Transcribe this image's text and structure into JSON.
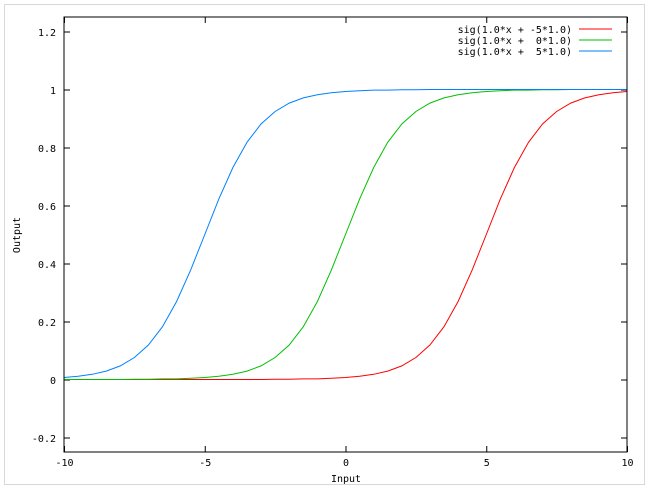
{
  "chart_data": {
    "type": "line",
    "title": "",
    "xlabel": "Input",
    "ylabel": "Output",
    "xlim": [
      -10,
      10
    ],
    "ylim": [
      -0.25,
      1.25
    ],
    "xticks": [
      -10,
      -5,
      0,
      5,
      10
    ],
    "xtick_labels": [
      "-10",
      "-5",
      "0",
      "5",
      "10"
    ],
    "yticks": [
      -0.2,
      0,
      0.2,
      0.4,
      0.6,
      0.8,
      1,
      1.2
    ],
    "ytick_labels": [
      "-0.2",
      "0",
      "0.2",
      "0.4",
      "0.6",
      "0.8",
      "1",
      "1.2"
    ],
    "grid": false,
    "legend_position": "top-right",
    "x": [
      -10,
      -9.5,
      -9,
      -8.5,
      -8,
      -7.5,
      -7,
      -6.5,
      -6,
      -5.5,
      -5,
      -4.5,
      -4,
      -3.5,
      -3,
      -2.5,
      -2,
      -1.5,
      -1,
      -0.5,
      0,
      0.5,
      1,
      1.5,
      2,
      2.5,
      3,
      3.5,
      4,
      4.5,
      5,
      5.5,
      6,
      6.5,
      7,
      7.5,
      8,
      8.5,
      9,
      9.5,
      10
    ],
    "series": [
      {
        "name": "sig(1.0*x + -5*1.0)",
        "color": "#ff0000",
        "values": [
          0,
          0,
          0,
          0,
          0,
          0,
          0,
          0,
          0,
          0,
          0,
          0,
          0,
          0,
          0,
          0.001,
          0.001,
          0.002,
          0.002,
          0.004,
          0.007,
          0.011,
          0.018,
          0.029,
          0.047,
          0.076,
          0.119,
          0.182,
          0.269,
          0.378,
          0.5,
          0.622,
          0.731,
          0.818,
          0.881,
          0.924,
          0.953,
          0.971,
          0.982,
          0.989,
          0.993
        ]
      },
      {
        "name": "sig(1.0*x +  0*1.0)",
        "color": "#00c000",
        "values": [
          0,
          0,
          0,
          0,
          0,
          0.001,
          0.001,
          0.002,
          0.002,
          0.004,
          0.007,
          0.011,
          0.018,
          0.029,
          0.047,
          0.076,
          0.119,
          0.182,
          0.269,
          0.378,
          0.5,
          0.622,
          0.731,
          0.818,
          0.881,
          0.924,
          0.953,
          0.971,
          0.982,
          0.989,
          0.993,
          0.996,
          0.998,
          0.998,
          0.999,
          0.999,
          1,
          1,
          1,
          1,
          1
        ]
      },
      {
        "name": "sig(1.0*x +  5*1.0)",
        "color": "#0080ff",
        "values": [
          0.007,
          0.011,
          0.018,
          0.029,
          0.047,
          0.076,
          0.119,
          0.182,
          0.269,
          0.378,
          0.5,
          0.622,
          0.731,
          0.818,
          0.881,
          0.924,
          0.953,
          0.971,
          0.982,
          0.989,
          0.993,
          0.996,
          0.998,
          0.998,
          0.999,
          0.999,
          1,
          1,
          1,
          1,
          1,
          1,
          1,
          1,
          1,
          1,
          1,
          1,
          1,
          1,
          1
        ]
      }
    ]
  }
}
